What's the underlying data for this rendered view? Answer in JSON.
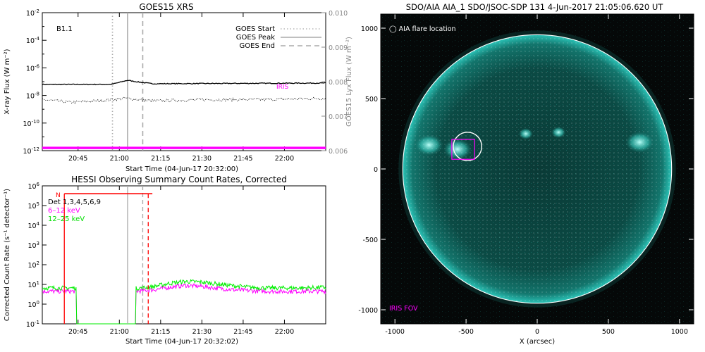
{
  "chart_data": [
    {
      "type": "line",
      "title": "GOES15 XRS",
      "annotation": "B1.1",
      "xlabel": "Start Time (04-Jun-17 20:32:00)",
      "ylabel_left": "X-ray Flux (W m⁻²)",
      "ylabel_right": "GOES15 Lyx Flux (W m⁻²)",
      "xlim": [
        0,
        103
      ],
      "ylim_log": [
        -12,
        -2
      ],
      "ylim_right": [
        0.006,
        0.01
      ],
      "x_ticks": [
        {
          "t": 13,
          "label": "20:45"
        },
        {
          "t": 28,
          "label": "21:00"
        },
        {
          "t": 43,
          "label": "21:15"
        },
        {
          "t": 58,
          "label": "21:30"
        },
        {
          "t": 73,
          "label": "21:45"
        },
        {
          "t": 88,
          "label": "22:00"
        }
      ],
      "y_ticks_left": [
        {
          "exp": -2,
          "label": "10-2"
        },
        {
          "exp": -4,
          "label": "10-4"
        },
        {
          "exp": -6,
          "label": "10-6"
        },
        {
          "exp": -8,
          "label": "10-8"
        },
        {
          "exp": -10,
          "label": "10-10"
        },
        {
          "exp": -12,
          "label": "10-12"
        }
      ],
      "y_ticks_right": [
        0.01,
        0.009,
        0.008,
        0.007,
        0.006
      ],
      "y_ticks_right_labels": [
        "0.010",
        "0.009",
        "0.008",
        "0.007",
        "0.006"
      ],
      "series": [
        {
          "x": [
            0,
            25,
            31,
            34,
            40,
            103
          ],
          "log_flux": [
            -7.2,
            -7.2,
            -6.9,
            -7.0,
            -7.15,
            -7.1
          ],
          "color": "#000000",
          "style": "solid"
        },
        {
          "x": [
            0,
            10,
            20,
            30,
            40,
            60,
            80,
            103
          ],
          "log_flux": [
            -8.3,
            -8.5,
            -8.4,
            -8.2,
            -8.4,
            -8.3,
            -8.3,
            -8.2
          ],
          "color": "#000000",
          "style": "dotted"
        },
        {
          "x": [
            0,
            103
          ],
          "log_flux": [
            -11.8,
            -11.8
          ],
          "color": "#ff00ff",
          "style": "thick"
        }
      ],
      "iris_label": "IRIS",
      "legend": [
        {
          "label": "GOES Start",
          "style": "dotted",
          "color": "#aaaaaa"
        },
        {
          "label": "GOES Peak",
          "style": "solid",
          "color": "#aaaaaa"
        },
        {
          "label": "GOES End",
          "style": "dashed",
          "color": "#aaaaaa"
        }
      ],
      "event_lines": [
        {
          "t": 25.5,
          "style": "dotted"
        },
        {
          "t": 31,
          "style": "solid"
        },
        {
          "t": 36.5,
          "style": "dashed"
        }
      ]
    },
    {
      "type": "line",
      "title": "HESSI Observing Summary Count Rates, Corrected",
      "xlabel": "Start Time (04-Jun-17 20:32:02)",
      "ylabel": "Corrected Count Rate (s⁻¹ detector⁻¹)",
      "xlim": [
        0,
        103
      ],
      "ylim_log": [
        -1,
        6
      ],
      "x_ticks": [
        {
          "t": 13,
          "label": "20:45"
        },
        {
          "t": 28,
          "label": "21:00"
        },
        {
          "t": 43,
          "label": "21:15"
        },
        {
          "t": 58,
          "label": "21:30"
        },
        {
          "t": 73,
          "label": "21:45"
        },
        {
          "t": 88,
          "label": "22:00"
        }
      ],
      "y_ticks": [
        {
          "exp": 6,
          "label": "106"
        },
        {
          "exp": 5,
          "label": "105"
        },
        {
          "exp": 4,
          "label": "104"
        },
        {
          "exp": 3,
          "label": "103"
        },
        {
          "exp": 2,
          "label": "102"
        },
        {
          "exp": 1,
          "label": "101"
        },
        {
          "exp": 0,
          "label": "100"
        },
        {
          "exp": -1,
          "label": "10-1"
        }
      ],
      "legend": [
        {
          "label": "Det 1,3,4,5,6,9",
          "color": "#000000"
        },
        {
          "label": "6–12 keV",
          "color": "#ff00ff"
        },
        {
          "label": "12–25 keV",
          "color": "#00ee00"
        }
      ],
      "night_flag": {
        "label": "N",
        "t_start": 8,
        "t_end": 40,
        "level_exp": 5.6,
        "color": "#ff0000"
      },
      "series": [
        {
          "name": "6–12 keV",
          "color": "#ff00ff",
          "x": [
            0,
            12.5,
            12.5,
            34,
            34,
            40,
            46,
            52,
            58,
            64,
            70,
            76,
            82,
            88,
            94,
            103
          ],
          "log_rate": [
            0.65,
            0.65,
            -1,
            -1,
            0.65,
            0.72,
            0.85,
            0.95,
            0.9,
            0.8,
            0.72,
            0.68,
            0.65,
            0.64,
            0.65,
            0.65
          ]
        },
        {
          "name": "12–25 keV",
          "color": "#00ee00",
          "x": [
            0,
            12.5,
            12.5,
            34,
            34,
            40,
            46,
            52,
            58,
            64,
            70,
            76,
            82,
            88,
            94,
            103
          ],
          "log_rate": [
            0.82,
            0.82,
            -1,
            -1,
            0.8,
            0.88,
            1.05,
            1.15,
            1.12,
            1.02,
            0.92,
            0.85,
            0.82,
            0.82,
            0.82,
            0.85
          ]
        }
      ],
      "event_lines": [
        {
          "t": 31,
          "color": "#aaaaaa",
          "style": "solid"
        },
        {
          "t": 36.5,
          "color": "#aaaaaa",
          "style": "dashed"
        },
        {
          "t": 38.5,
          "color": "#ff0000",
          "style": "dashed"
        },
        {
          "t": 8,
          "color": "#ff0000",
          "style": "solid"
        }
      ]
    },
    {
      "type": "image",
      "title": "SDO/AIA AIA_1 SDO/JSOC-SDP 131   4-Jun-2017 21:05:06.620 UT",
      "xlabel": "X (arcsec)",
      "xlim": [
        -1100,
        1100
      ],
      "ylim": [
        -1100,
        1100
      ],
      "x_ticks": [
        -1000,
        -500,
        0,
        500,
        1000
      ],
      "y_ticks": [
        1000,
        500,
        0,
        -500,
        -1000
      ],
      "solar_radius_arcsec": 945,
      "aia_flare_label": "◯ AIA flare location",
      "iris_fov_label": "IRIS FOV",
      "flare_circle": {
        "cx": -490,
        "cy": 160,
        "r": 100
      },
      "iris_box": {
        "x0": -600,
        "x1": -440,
        "y0": 70,
        "y1": 210
      },
      "active_regions": [
        {
          "x": -760,
          "y": 170
        },
        {
          "x": -560,
          "y": 140
        },
        {
          "x": -80,
          "y": 250
        },
        {
          "x": 150,
          "y": 260
        },
        {
          "x": 720,
          "y": 190
        }
      ]
    }
  ]
}
